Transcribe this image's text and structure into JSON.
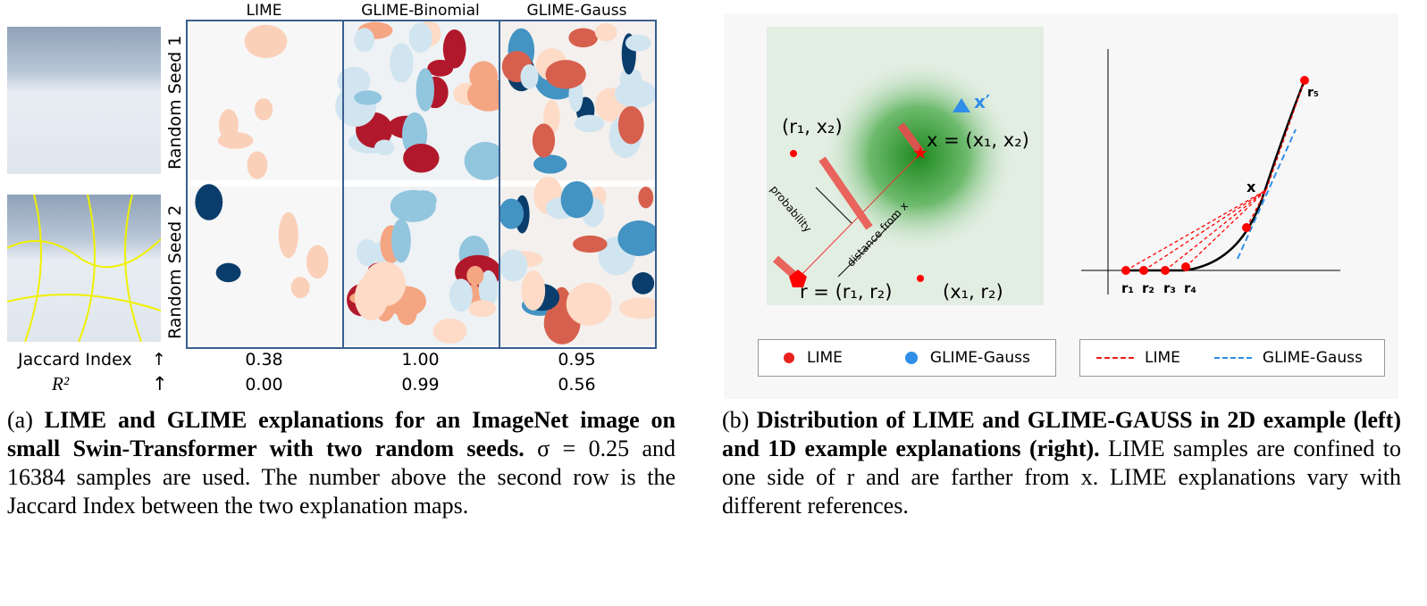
{
  "panel_a": {
    "columns": [
      "LIME",
      "GLIME-Binomial",
      "GLIME-Gauss"
    ],
    "rows": [
      "Random Seed 1",
      "Random Seed 2"
    ],
    "metrics": [
      {
        "label": "Jaccard Index",
        "arrow": "↑",
        "values": [
          "0.38",
          "1.00",
          "0.95"
        ]
      },
      {
        "label": "R²",
        "arrow": "↑",
        "values": [
          "0.00",
          "0.99",
          "0.56"
        ]
      }
    ],
    "caption_tag": "(a)",
    "caption_bold": "LIME and GLIME explanations for an ImageNet image on small Swin-Transformer with two random seeds.",
    "caption_text": "σ = 0.25 and 16384 samples are used. The number above the second row is the Jaccard Index between the two explanation maps."
  },
  "panel_b": {
    "left_plot": {
      "labels": {
        "x_prime": "x′",
        "x": "x = (x₁, x₂)",
        "r1x2": "(r₁, x₂)",
        "x1r2": "(x₁, r₂)",
        "r": "r = (r₁, r₂)",
        "probability": "probability",
        "distance": "distance from x"
      }
    },
    "right_plot": {
      "labels": {
        "x": "x",
        "r5": "r₅",
        "r1": "r₁",
        "r2": "r₂",
        "r3": "r₃",
        "r4": "r₄"
      }
    },
    "legend_left": [
      "LIME",
      "GLIME-Gauss"
    ],
    "legend_right": [
      "LIME",
      "GLIME-Gauss"
    ],
    "colors": {
      "lime": "#e8201c",
      "glime": "#2f8ee8",
      "green": "#1e8a1e"
    },
    "caption_tag": "(b)",
    "caption_bold": "Distribution of LIME and GLIME-GAUSS in 2D example (left) and 1D example explanations (right).",
    "caption_text": "LIME samples are confined to one side of r and are farther from x. LIME explanations vary with different references."
  }
}
